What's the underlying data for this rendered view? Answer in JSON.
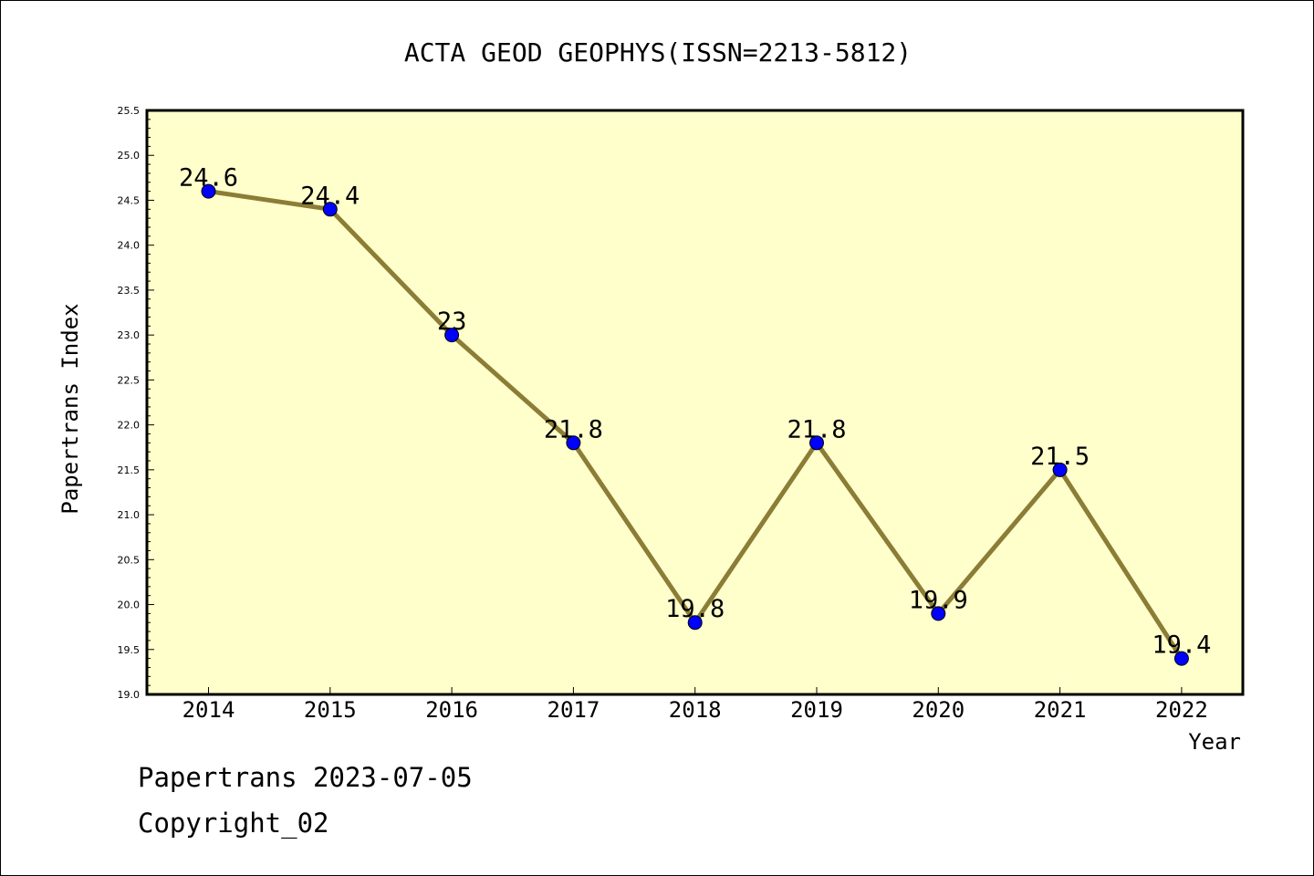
{
  "chart_data": {
    "type": "line",
    "title": "ACTA GEOD GEOPHYS(ISSN=2213-5812)",
    "xlabel": "Year",
    "ylabel": "Papertrans Index",
    "categories": [
      "2014",
      "2015",
      "2016",
      "2017",
      "2018",
      "2019",
      "2020",
      "2021",
      "2022"
    ],
    "series": [
      {
        "values": [
          24.6,
          24.4,
          23.0,
          21.8,
          19.8,
          21.8,
          19.9,
          21.5,
          19.4
        ],
        "data_labels": [
          "24.6",
          "24.4",
          "23",
          "21.8",
          "19.8",
          "21.8",
          "19.9",
          "21.5",
          "19.4"
        ]
      }
    ],
    "ylim": [
      19.0,
      25.5
    ],
    "yticks": [
      "19.0",
      "19.5",
      "20.0",
      "20.5",
      "21.0",
      "21.5",
      "22.0",
      "22.5",
      "23.0",
      "23.5",
      "24.0",
      "24.5",
      "25.0",
      "25.5"
    ],
    "grid": false,
    "colors": {
      "plot_background": "#ffffcc",
      "line": "#8b7d35",
      "marker": "#0000ff"
    }
  },
  "footer": {
    "line1": "Papertrans 2023-07-05",
    "line2": "Copyright_02"
  }
}
